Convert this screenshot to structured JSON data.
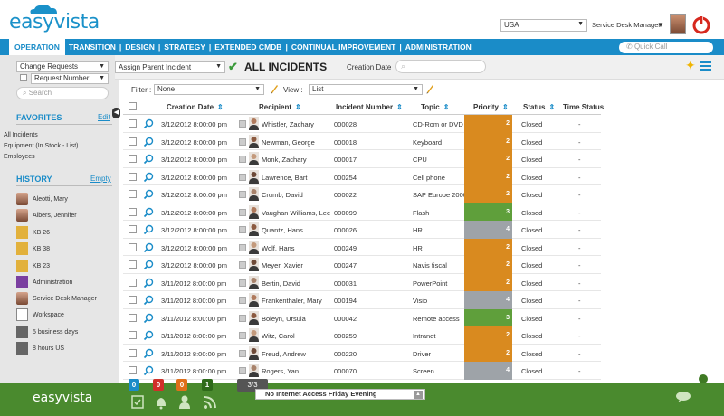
{
  "app": {
    "logo": "easyvista",
    "country": "USA",
    "role": "Service Desk Manager"
  },
  "nav": {
    "tabs": [
      "OPERATION",
      "TRANSITION",
      "DESIGN",
      "STRATEGY",
      "EXTENDED CMDB",
      "CONTINUAL IMPROVEMENT",
      "ADMINISTRATION"
    ],
    "quick_call_placeholder": "Quick Call"
  },
  "left": {
    "menu_select": "Change Requests",
    "field_select": "Request Number",
    "search_placeholder": "Search",
    "favorites_title": "FAVORITES",
    "favorites_edit": "Edit",
    "favorites": [
      "All Incidents",
      "Equipment (In Stock - List)",
      "Employees"
    ],
    "history_title": "HISTORY",
    "history_empty": "Empty",
    "history": [
      {
        "label": "Aleotti, Mary",
        "icon": "person-icon"
      },
      {
        "label": "Albers, Jennifer",
        "icon": "person-icon"
      },
      {
        "label": "KB 26",
        "icon": "kb-icon"
      },
      {
        "label": "KB 38",
        "icon": "kb-icon"
      },
      {
        "label": "KB 23",
        "icon": "kb-icon"
      },
      {
        "label": "Administration",
        "icon": "admin-icon"
      },
      {
        "label": "Service Desk Manager",
        "icon": "person-icon"
      },
      {
        "label": "Workspace",
        "icon": "workspace-icon"
      },
      {
        "label": "5 business days",
        "icon": "clock-icon"
      },
      {
        "label": "8 hours US",
        "icon": "clock-icon"
      }
    ]
  },
  "toolbar": {
    "action": "Assign Parent Incident",
    "title": "ALL INCIDENTS",
    "date_label": "Creation Date"
  },
  "filters": {
    "filter_label": "Filter :",
    "filter_value": "None",
    "view_label": "View :",
    "view_value": "List"
  },
  "table": {
    "columns": [
      "Creation Date",
      "Recipient",
      "Incident Number",
      "Topic",
      "Priority",
      "Status",
      "Time Status"
    ],
    "rows": [
      {
        "date": "3/12/2012 8:00:00 pm",
        "recipient": "Whistler, Zachary",
        "number": "000028",
        "topic": "CD-Rom or DVD",
        "priority": "2",
        "status": "Closed",
        "time": "-"
      },
      {
        "date": "3/12/2012 8:00:00 pm",
        "recipient": "Newman, George",
        "number": "000018",
        "topic": "Keyboard",
        "priority": "2",
        "status": "Closed",
        "time": "-"
      },
      {
        "date": "3/12/2012 8:00:00 pm",
        "recipient": "Monk, Zachary",
        "number": "000017",
        "topic": "CPU",
        "priority": "2",
        "status": "Closed",
        "time": "-"
      },
      {
        "date": "3/12/2012 8:00:00 pm",
        "recipient": "Lawrence, Bart",
        "number": "000254",
        "topic": "Cell phone",
        "priority": "2",
        "status": "Closed",
        "time": "-"
      },
      {
        "date": "3/12/2012 8:00:00 pm",
        "recipient": "Crumb, David",
        "number": "000022",
        "topic": "SAP Europe 2000",
        "priority": "2",
        "status": "Closed",
        "time": "-"
      },
      {
        "date": "3/12/2012 8:00:00 pm",
        "recipient": "Vaughan Williams, Lee",
        "number": "000099",
        "topic": "Flash",
        "priority": "3",
        "status": "Closed",
        "time": "-"
      },
      {
        "date": "3/12/2012 8:00:00 pm",
        "recipient": "Quantz, Hans",
        "number": "000026",
        "topic": "HR",
        "priority": "4",
        "status": "Closed",
        "time": "-"
      },
      {
        "date": "3/12/2012 8:00:00 pm",
        "recipient": "Wolf, Hans",
        "number": "000249",
        "topic": "HR",
        "priority": "2",
        "status": "Closed",
        "time": "-"
      },
      {
        "date": "3/12/2012 8:00:00 pm",
        "recipient": "Meyer, Xavier",
        "number": "000247",
        "topic": "Navis fiscal",
        "priority": "2",
        "status": "Closed",
        "time": "-"
      },
      {
        "date": "3/11/2012 8:00:00 pm",
        "recipient": "Bertin, David",
        "number": "000031",
        "topic": "PowerPoint",
        "priority": "2",
        "status": "Closed",
        "time": "-"
      },
      {
        "date": "3/11/2012 8:00:00 pm",
        "recipient": "Frankenthaler, Mary",
        "number": "000194",
        "topic": "Visio",
        "priority": "4",
        "status": "Closed",
        "time": "-"
      },
      {
        "date": "3/11/2012 8:00:00 pm",
        "recipient": "Boleyn, Ursula",
        "number": "000042",
        "topic": "Remote access",
        "priority": "3",
        "status": "Closed",
        "time": "-"
      },
      {
        "date": "3/11/2012 8:00:00 pm",
        "recipient": "Witz, Carol",
        "number": "000259",
        "topic": "Intranet",
        "priority": "2",
        "status": "Closed",
        "time": "-"
      },
      {
        "date": "3/11/2012 8:00:00 pm",
        "recipient": "Freud, Andrew",
        "number": "000220",
        "topic": "Driver",
        "priority": "2",
        "status": "Closed",
        "time": "-"
      },
      {
        "date": "3/11/2012 8:00:00 pm",
        "recipient": "Rogers, Yan",
        "number": "000070",
        "topic": "Screen",
        "priority": "4",
        "status": "Closed",
        "time": "-"
      }
    ]
  },
  "bottom": {
    "logo": "easyvista",
    "badges": [
      {
        "value": "0",
        "color": "#1a8cc8"
      },
      {
        "value": "0",
        "color": "#d0302a"
      },
      {
        "value": "0",
        "color": "#e0701a"
      },
      {
        "value": "1",
        "color": "#2e6a1a"
      }
    ],
    "pager": "3/3",
    "news": "No Internet Access Friday Evening"
  },
  "colors": {
    "brand": "#1a8cc8",
    "footer": "#4a8a2e",
    "priority_2": "#d98a1f",
    "priority_3": "#5f9f3b",
    "priority_4": "#9ea3a8"
  }
}
